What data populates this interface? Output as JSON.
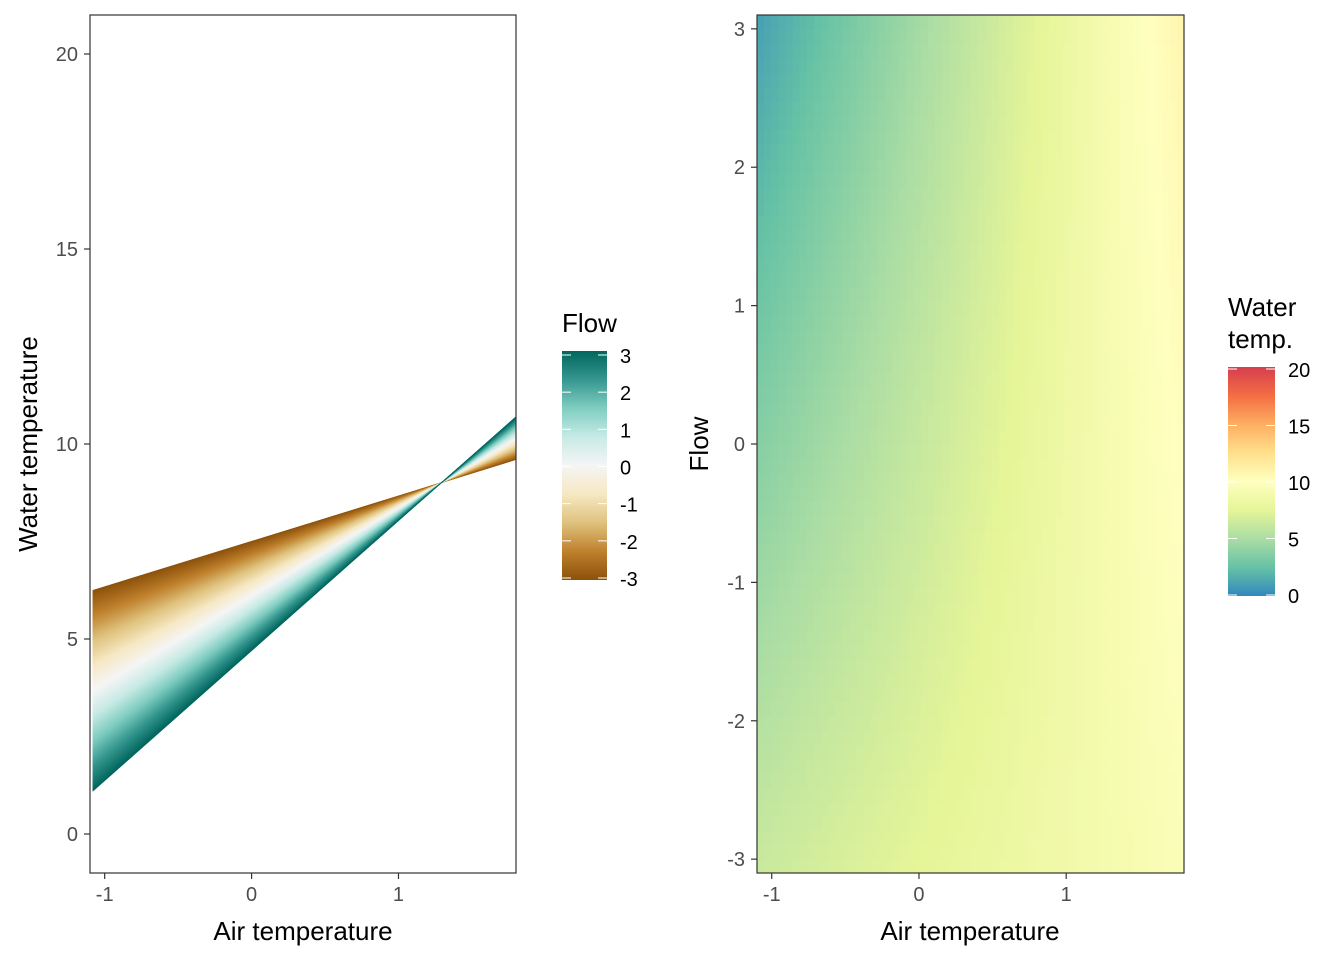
{
  "chart_data": [
    {
      "type": "area",
      "xlabel": "Air temperature",
      "ylabel": "Water temperature",
      "xlim": [
        -1.1,
        1.8
      ],
      "ylim": [
        -1,
        21
      ],
      "x_ticks": [
        -1,
        0,
        1
      ],
      "x_tick_labels": [
        "-1",
        "0",
        "1"
      ],
      "y_ticks": [
        0,
        5,
        10,
        15,
        20
      ],
      "y_tick_labels": [
        "0",
        "5",
        "10",
        "15",
        "20"
      ],
      "grid": false,
      "fan": {
        "x_range": [
          -1.08,
          1.8
        ],
        "pivot": {
          "x": 1.29,
          "y": 9.03
        },
        "flow_min": {
          "flow": -3,
          "y_at_x_min": 6.25,
          "y_at_x_max": 9.6
        },
        "flow_max": {
          "flow": 3,
          "y_at_x_min": 1.1,
          "y_at_x_max": 10.7
        }
      },
      "legend": {
        "title": "Flow",
        "position": "right",
        "min": -3,
        "max": 3,
        "ticks": [
          -3,
          -2,
          -1,
          0,
          1,
          2,
          3
        ],
        "tick_labels": [
          "-3",
          "-2",
          "-1",
          "0",
          "1",
          "2",
          "3"
        ],
        "colors": [
          "#8c510a",
          "#bf812d",
          "#dfc27d",
          "#f6e8c3",
          "#f5f5f5",
          "#c7eae5",
          "#80cdc1",
          "#35978f",
          "#01665e"
        ]
      }
    },
    {
      "type": "heatmap",
      "xlabel": "Air temperature",
      "ylabel": "Flow",
      "xlim": [
        -1.1,
        1.8
      ],
      "ylim": [
        -3.1,
        3.1
      ],
      "x_ticks": [
        -1,
        0,
        1
      ],
      "x_tick_labels": [
        "-1",
        "0",
        "1"
      ],
      "y_ticks": [
        -3,
        -2,
        -1,
        0,
        1,
        2,
        3
      ],
      "y_tick_labels": [
        "-3",
        "-2",
        "-1",
        "0",
        "1",
        "2",
        "3"
      ],
      "grid": false,
      "surface": {
        "x": [
          -1.1,
          1.8
        ],
        "y": [
          -3.1,
          3.1
        ],
        "z": [
          [
            6.3,
            9.5
          ],
          [
            1.0,
            10.8
          ]
        ],
        "note_rows": "z[0] at y=-3.1, z[1] at y=3.1; columns at x=-1.1 and x=1.8"
      },
      "legend": {
        "title": "Water temp.",
        "title_lines": [
          "Water",
          "temp."
        ],
        "position": "right",
        "min": 0,
        "max": 20,
        "ticks": [
          0,
          5,
          10,
          15,
          20
        ],
        "tick_labels": [
          "0",
          "5",
          "10",
          "15",
          "20"
        ],
        "colors": [
          "#3288bd",
          "#66c2a5",
          "#abdda4",
          "#e6f598",
          "#ffffbf",
          "#fee08b",
          "#fdae61",
          "#f46d43",
          "#d53e4f"
        ]
      }
    }
  ]
}
